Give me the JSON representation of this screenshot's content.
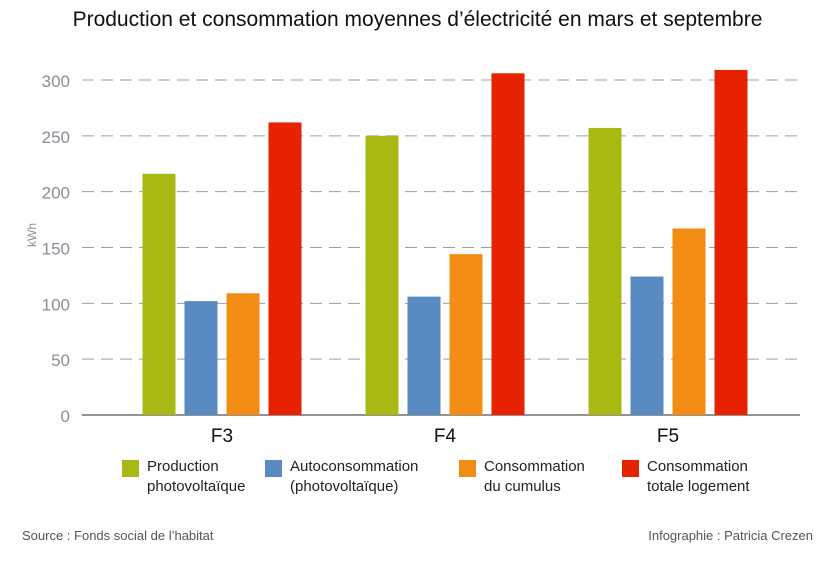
{
  "chart_data": {
    "type": "bar",
    "title": "Production et consommation moyennes d’électricité en mars et septembre",
    "xlabel": "",
    "ylabel": "kWh",
    "ylim": [
      0,
      300
    ],
    "yticks": [
      "0",
      "50",
      "100",
      "150",
      "200",
      "250",
      "300"
    ],
    "grid": true,
    "legend_position": "bottom",
    "categories": [
      "F3",
      "F4",
      "F5"
    ],
    "series": [
      {
        "name": "Production\nphotovoltaïque",
        "color": "#a9b914",
        "values": [
          216,
          250,
          257
        ]
      },
      {
        "name": "Autoconsommation\n(photovoltaïque)",
        "color": "#5a8ac2",
        "values": [
          102,
          106,
          124
        ]
      },
      {
        "name": "Consommation\ndu cumulus",
        "color": "#f28c12",
        "values": [
          109,
          144,
          167
        ]
      },
      {
        "name": "Consommation\ntotale logement",
        "color": "#e62200",
        "values": [
          262,
          306,
          309
        ]
      }
    ]
  },
  "footer": {
    "source": "Source : Fonds social de l’habitat",
    "credit": "Infographie : Patricia Crezen"
  }
}
